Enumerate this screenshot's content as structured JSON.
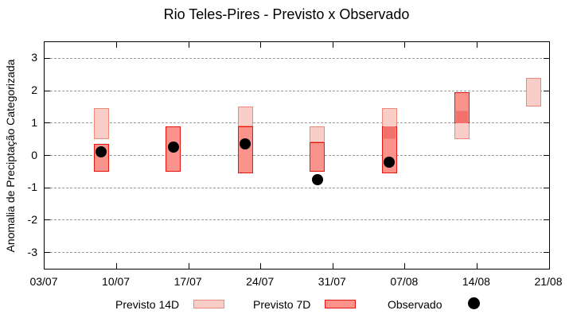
{
  "title": "Rio Teles-Pires - Previsto x Observado",
  "axes": {
    "ylabel": "Anomalia de Preciptação Categorizada",
    "ylim": [
      -3.5,
      3.5
    ],
    "yticks": [
      3,
      2,
      1,
      0,
      -1,
      -2,
      -3
    ],
    "xlim_days": [
      0,
      49
    ],
    "xticks": [
      {
        "day": 0,
        "label": "03/07"
      },
      {
        "day": 7,
        "label": "10/07"
      },
      {
        "day": 14,
        "label": "17/07"
      },
      {
        "day": 21,
        "label": "24/07"
      },
      {
        "day": 28,
        "label": "31/07"
      },
      {
        "day": 35,
        "label": "07/08"
      },
      {
        "day": 42,
        "label": "14/08"
      },
      {
        "day": 49,
        "label": "21/08"
      }
    ],
    "grid": "horizontal-dashed"
  },
  "legend": [
    {
      "label": "Previsto 14D",
      "swatch": "pink-bar"
    },
    {
      "label": "Previsto 7D",
      "swatch": "red-bar"
    },
    {
      "label": "Observado",
      "swatch": "black-dot"
    }
  ],
  "colors": {
    "previsto14d_fill": "#f9cec8",
    "previsto14d_border": "#ee8878",
    "previsto7d_fill": "#fa938b",
    "previsto7d_overlap_fill": "#f3716c",
    "previsto7d_border": "#e8160f",
    "observado": "#000000",
    "grid": "#9a9a9a",
    "axis": "#000000"
  },
  "chart_data": {
    "type": "bar",
    "title": "Rio Teles-Pires - Previsto x Observado",
    "ylabel": "Anomalia de Preciptação Categorizada",
    "ylim": [
      -3.5,
      3.5
    ],
    "x_axis_dates": [
      "03/07",
      "10/07",
      "17/07",
      "24/07",
      "31/07",
      "07/08",
      "14/08",
      "21/08"
    ],
    "series_names": [
      "Previsto 14D",
      "Previsto 7D",
      "Observado"
    ],
    "groups": [
      {
        "date": "08/07",
        "day": 5.5,
        "previsto14d": [
          0.5,
          1.45
        ],
        "previsto7d": [
          -0.5,
          0.35
        ],
        "overlap": null,
        "observado": 0.1
      },
      {
        "date": "15/07",
        "day": 12.5,
        "previsto14d": null,
        "previsto7d": [
          -0.5,
          0.9
        ],
        "overlap": null,
        "observado": 0.25
      },
      {
        "date": "22/07",
        "day": 19.5,
        "previsto14d": [
          0.9,
          1.5
        ],
        "previsto7d": [
          -0.55,
          0.9
        ],
        "overlap": null,
        "observado": 0.35
      },
      {
        "date": "29/07",
        "day": 26.5,
        "previsto14d": [
          0.4,
          0.9
        ],
        "previsto7d": [
          -0.5,
          0.4
        ],
        "overlap": null,
        "observado": -0.75
      },
      {
        "date": "05/08",
        "day": 33.5,
        "previsto14d": [
          0.5,
          1.45
        ],
        "previsto7d": [
          -0.55,
          0.9
        ],
        "overlap": {
          "range": [
            0.5,
            0.9
          ],
          "line_edge": "bottom"
        },
        "observado": -0.2
      },
      {
        "date": "12/08",
        "day": 40.5,
        "previsto14d": [
          0.5,
          1.4
        ],
        "previsto7d": [
          1.0,
          1.95
        ],
        "overlap": {
          "range": [
            1.0,
            1.4
          ],
          "line_edge": "top"
        },
        "observado": null
      },
      {
        "date": "19/08",
        "day": 47.5,
        "previsto14d": [
          1.5,
          2.4
        ],
        "previsto7d": null,
        "overlap": null,
        "observado": null
      }
    ]
  }
}
